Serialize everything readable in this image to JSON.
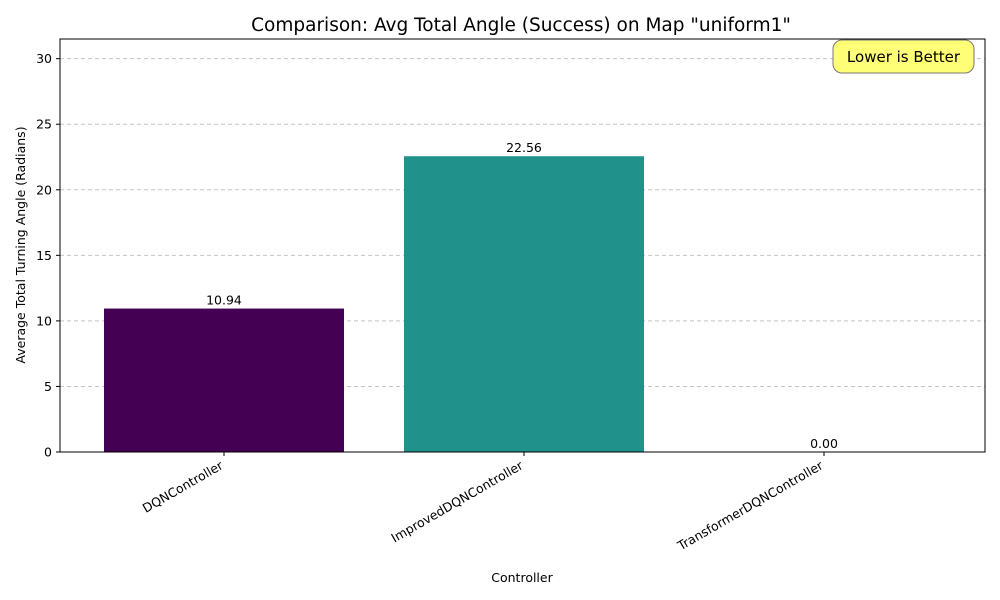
{
  "chart_data": {
    "type": "bar",
    "title": "Comparison: Avg Total Angle (Success) on Map \"uniform1\"",
    "xlabel": "Controller",
    "ylabel": "Average Total Turning Angle (Radians)",
    "categories": [
      "DQNController",
      "ImprovedDQNController",
      "TransformerDQNController"
    ],
    "values": [
      10.94,
      22.56,
      0.0
    ],
    "value_labels": [
      "10.94",
      "22.56",
      "0.00"
    ],
    "bar_colors": [
      "#440154",
      "#21918c",
      "#fde725"
    ],
    "ylim": [
      0,
      31.5
    ],
    "yticks": [
      0,
      5,
      10,
      15,
      20,
      25,
      30
    ],
    "grid": "y-dashed",
    "annotation": "Lower is Better",
    "annotation_color": "#ffff77"
  }
}
